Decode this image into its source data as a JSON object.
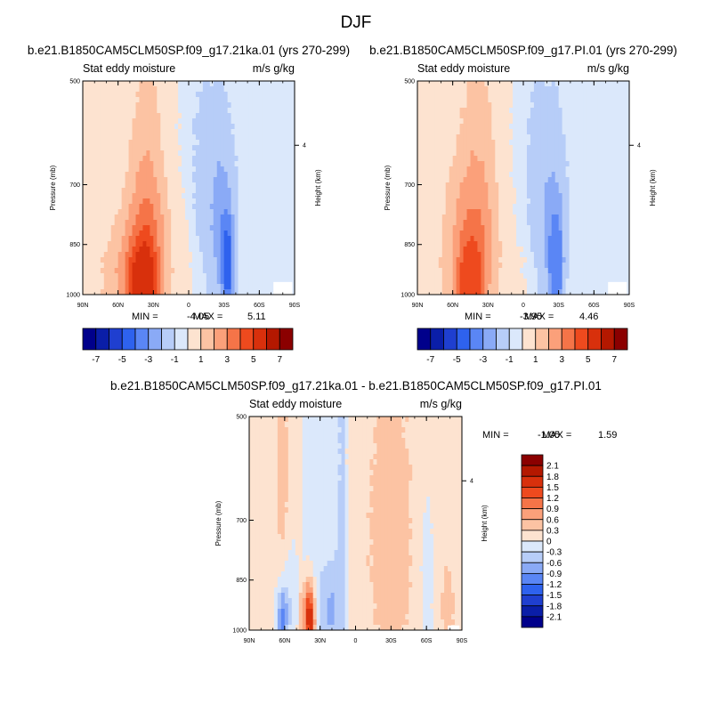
{
  "figure": {
    "title": "DJF"
  },
  "panels_text": [
    {
      "title": "b.e21.B1850CAM5CLM50SP.f09_g17.21ka.01 (yrs 270-299)",
      "left_label": "Stat eddy moisture",
      "right_label": "m/s g/kg",
      "ylabel": "Pressure (mb)",
      "ylabel_right": "Height (km)",
      "min_label": "MIN =",
      "min_value": "-4.05",
      "max_label": "MAX =",
      "max_value": "5.11"
    },
    {
      "title": "b.e21.B1850CAM5CLM50SP.f09_g17.PI.01 (yrs 270-299)",
      "left_label": "Stat eddy moisture",
      "right_label": "m/s g/kg",
      "ylabel": "Pressure (mb)",
      "ylabel_right": "Height (km)",
      "min_label": "MIN =",
      "min_value": "-3.95",
      "max_label": "MAX =",
      "max_value": "4.46"
    },
    {
      "title": "b.e21.B1850CAM5CLM50SP.f09_g17.21ka.01 - b.e21.B1850CAM5CLM50SP.f09_g17.PI.01",
      "left_label": "Stat eddy moisture",
      "right_label": "m/s g/kg",
      "ylabel": "Pressure (mb)",
      "ylabel_right": "Height (km)",
      "min_label": "MIN =",
      "min_value": "-1.05",
      "max_label": "MAX =",
      "max_value": "1.59"
    }
  ],
  "chart_data": [
    {
      "type": "heatmap",
      "title": "b.e21.B1850CAM5CLM50SP.f09_g17.21ka.01 (yrs 270-299)",
      "variable": "Stat eddy moisture",
      "units": "m/s g/kg",
      "x_tick_labels": [
        "90N",
        "60N",
        "30N",
        "0",
        "30S",
        "60S",
        "90S"
      ],
      "y_tick_values": [
        500,
        700,
        850,
        1000
      ],
      "y_tick_labels": [
        "500",
        "700",
        "850",
        "1000"
      ],
      "y_right_tick_labels": [
        "4"
      ],
      "ylabel": "Pressure (mb)",
      "ylabel_right": "Height (km)",
      "xlim": [
        90,
        -90
      ],
      "ylim": [
        1000,
        500
      ],
      "min": -4.05,
      "max": 5.11,
      "colorbar_levels": [
        -7,
        -6,
        -5,
        -4,
        -3,
        -2,
        -1,
        0,
        1,
        2,
        3,
        4,
        5,
        6,
        7
      ],
      "colorbar_tick_labels": [
        "-7",
        "-5",
        "-3",
        "-1",
        "1",
        "3",
        "5",
        "7"
      ],
      "features": [
        {
          "lat": 40,
          "p": 980,
          "value": 4.6,
          "w": 12,
          "h": 120
        },
        {
          "lat": 36,
          "p": 880,
          "value": 2.6,
          "w": 20,
          "h": 200
        },
        {
          "lat": 35,
          "p": 690,
          "value": 1.2,
          "w": 14,
          "h": 280
        },
        {
          "lat": 62,
          "p": 950,
          "value": 1.0,
          "w": 16,
          "h": 140
        },
        {
          "lat": -33,
          "p": 920,
          "value": -3.6,
          "w": 5,
          "h": 130
        },
        {
          "lat": -28,
          "p": 810,
          "value": -1.8,
          "w": 12,
          "h": 220
        },
        {
          "lat": -12,
          "p": 650,
          "value": -0.7,
          "w": 30,
          "h": 350
        }
      ]
    },
    {
      "type": "heatmap",
      "title": "b.e21.B1850CAM5CLM50SP.f09_g17.PI.01 (yrs 270-299)",
      "variable": "Stat eddy moisture",
      "units": "m/s g/kg",
      "x_tick_labels": [
        "90N",
        "60N",
        "30N",
        "0",
        "30S",
        "60S",
        "90S"
      ],
      "y_tick_values": [
        500,
        700,
        850,
        1000
      ],
      "y_tick_labels": [
        "500",
        "700",
        "850",
        "1000"
      ],
      "y_right_tick_labels": [
        "4"
      ],
      "ylabel": "Pressure (mb)",
      "ylabel_right": "Height (km)",
      "xlim": [
        90,
        -90
      ],
      "ylim": [
        1000,
        500
      ],
      "min": -3.95,
      "max": 4.46,
      "colorbar_levels": [
        -7,
        -6,
        -5,
        -4,
        -3,
        -2,
        -1,
        0,
        1,
        2,
        3,
        4,
        5,
        6,
        7
      ],
      "colorbar_tick_labels": [
        "-7",
        "-5",
        "-3",
        "-1",
        "1",
        "3",
        "5",
        "7"
      ],
      "features": [
        {
          "lat": 45,
          "p": 980,
          "value": 4.0,
          "w": 10,
          "h": 110
        },
        {
          "lat": 45,
          "p": 870,
          "value": 2.4,
          "w": 22,
          "h": 210
        },
        {
          "lat": 38,
          "p": 680,
          "value": 1.1,
          "w": 16,
          "h": 300
        },
        {
          "lat": -28,
          "p": 930,
          "value": -3.5,
          "w": 5,
          "h": 130
        },
        {
          "lat": -25,
          "p": 820,
          "value": -1.7,
          "w": 12,
          "h": 220
        },
        {
          "lat": -10,
          "p": 650,
          "value": -0.7,
          "w": 30,
          "h": 350
        }
      ]
    },
    {
      "type": "heatmap",
      "title": "b.e21.B1850CAM5CLM50SP.f09_g17.21ka.01 - b.e21.B1850CAM5CLM50SP.f09_g17.PI.01",
      "variable": "Stat eddy moisture",
      "units": "m/s g/kg",
      "x_tick_labels": [
        "90N",
        "60N",
        "30N",
        "0",
        "30S",
        "60S",
        "90S"
      ],
      "y_tick_values": [
        500,
        700,
        850,
        1000
      ],
      "y_tick_labels": [
        "500",
        "700",
        "850",
        "1000"
      ],
      "y_right_tick_labels": [
        "4"
      ],
      "ylabel": "Pressure (mb)",
      "ylabel_right": "Height (km)",
      "xlim": [
        90,
        -90
      ],
      "ylim": [
        1000,
        500
      ],
      "min": -1.05,
      "max": 1.59,
      "colorbar_levels": [
        -2.1,
        -1.8,
        -1.5,
        -1.2,
        -0.9,
        -0.6,
        -0.3,
        0,
        0.3,
        0.6,
        0.9,
        1.2,
        1.5,
        1.8,
        2.1
      ],
      "colorbar_tick_labels": [
        "2.1",
        "1.8",
        "1.5",
        "1.2",
        "0.9",
        "0.6",
        "0.3",
        "0",
        "-0.3",
        "-0.6",
        "-0.9",
        "-1.2",
        "-1.5",
        "-1.8",
        "-2.1"
      ],
      "features": [
        {
          "lat": 38,
          "p": 970,
          "value": 1.55,
          "w": 4,
          "h": 90
        },
        {
          "lat": 42,
          "p": 940,
          "value": 0.9,
          "w": 6,
          "h": 130
        },
        {
          "lat": 62,
          "p": 960,
          "value": -0.95,
          "w": 4,
          "h": 90
        },
        {
          "lat": 55,
          "p": 920,
          "value": -0.45,
          "w": 12,
          "h": 180
        },
        {
          "lat": 22,
          "p": 940,
          "value": -0.5,
          "w": 10,
          "h": 120
        },
        {
          "lat": 62,
          "p": 640,
          "value": 0.35,
          "w": 5,
          "h": 230
        },
        {
          "lat": 10,
          "p": 700,
          "value": -0.22,
          "w": 8,
          "h": 500
        },
        {
          "lat": -30,
          "p": 760,
          "value": 0.25,
          "w": 25,
          "h": 500
        },
        {
          "lat": -60,
          "p": 850,
          "value": -0.3,
          "w": 8,
          "h": 300
        },
        {
          "lat": -78,
          "p": 930,
          "value": 0.4,
          "w": 5,
          "h": 110
        }
      ]
    }
  ],
  "colors": {
    "negative": [
      "#00008b",
      "#0a1ea8",
      "#1f3fd0",
      "#2e62ee",
      "#5a86f5",
      "#8aaaf6",
      "#b7cdf8",
      "#dbe8fb"
    ],
    "positive": [
      "#fde3d0",
      "#fcc3a3",
      "#fba07a",
      "#f57448",
      "#ee4a1e",
      "#d8300c",
      "#b41800",
      "#8b0000"
    ]
  }
}
